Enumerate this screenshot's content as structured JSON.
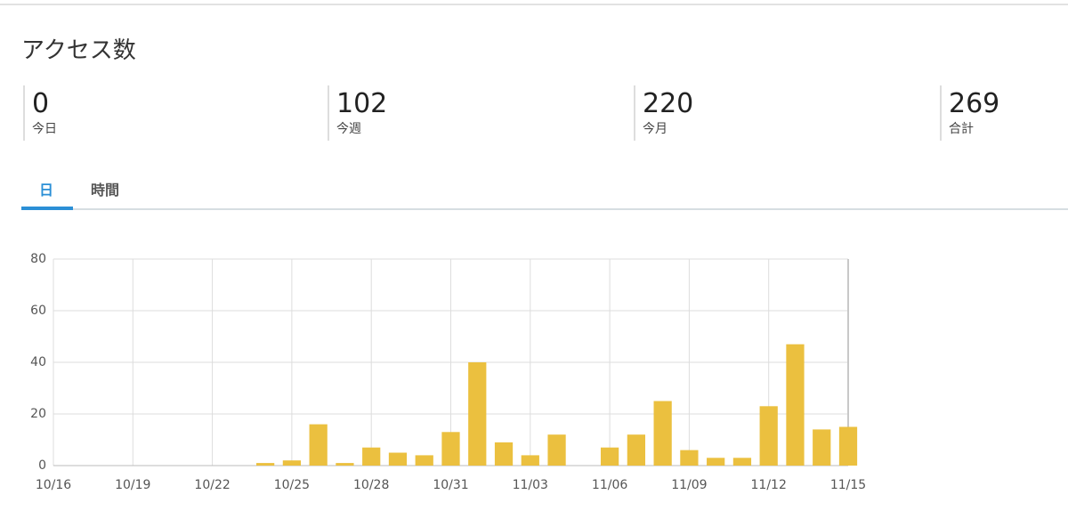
{
  "header": {
    "title": "アクセス数"
  },
  "stats": [
    {
      "value": 0,
      "label": "今日"
    },
    {
      "value": 102,
      "label": "今週"
    },
    {
      "value": 220,
      "label": "今月"
    },
    {
      "value": 269,
      "label": "合計"
    }
  ],
  "tabs": [
    "日",
    "時間"
  ],
  "chart_data": {
    "type": "bar",
    "categories": [
      "10/16",
      null,
      null,
      "10/19",
      null,
      null,
      "10/22",
      null,
      null,
      "10/25",
      null,
      null,
      "10/28",
      null,
      null,
      "10/31",
      null,
      null,
      "11/03",
      null,
      null,
      "11/06",
      null,
      null,
      "11/09",
      null,
      null,
      "11/12",
      null,
      null,
      "11/15"
    ],
    "values": [
      0,
      0,
      0,
      0,
      0,
      0,
      0,
      0,
      1,
      2,
      16,
      1,
      7,
      5,
      4,
      13,
      40,
      9,
      4,
      12,
      0,
      7,
      12,
      25,
      6,
      3,
      3,
      23,
      47,
      14,
      15
    ],
    "color": "#ebc03f",
    "ylim": [
      0,
      80
    ],
    "yticks": [
      0,
      20,
      40,
      60,
      80
    ],
    "grid": true
  }
}
